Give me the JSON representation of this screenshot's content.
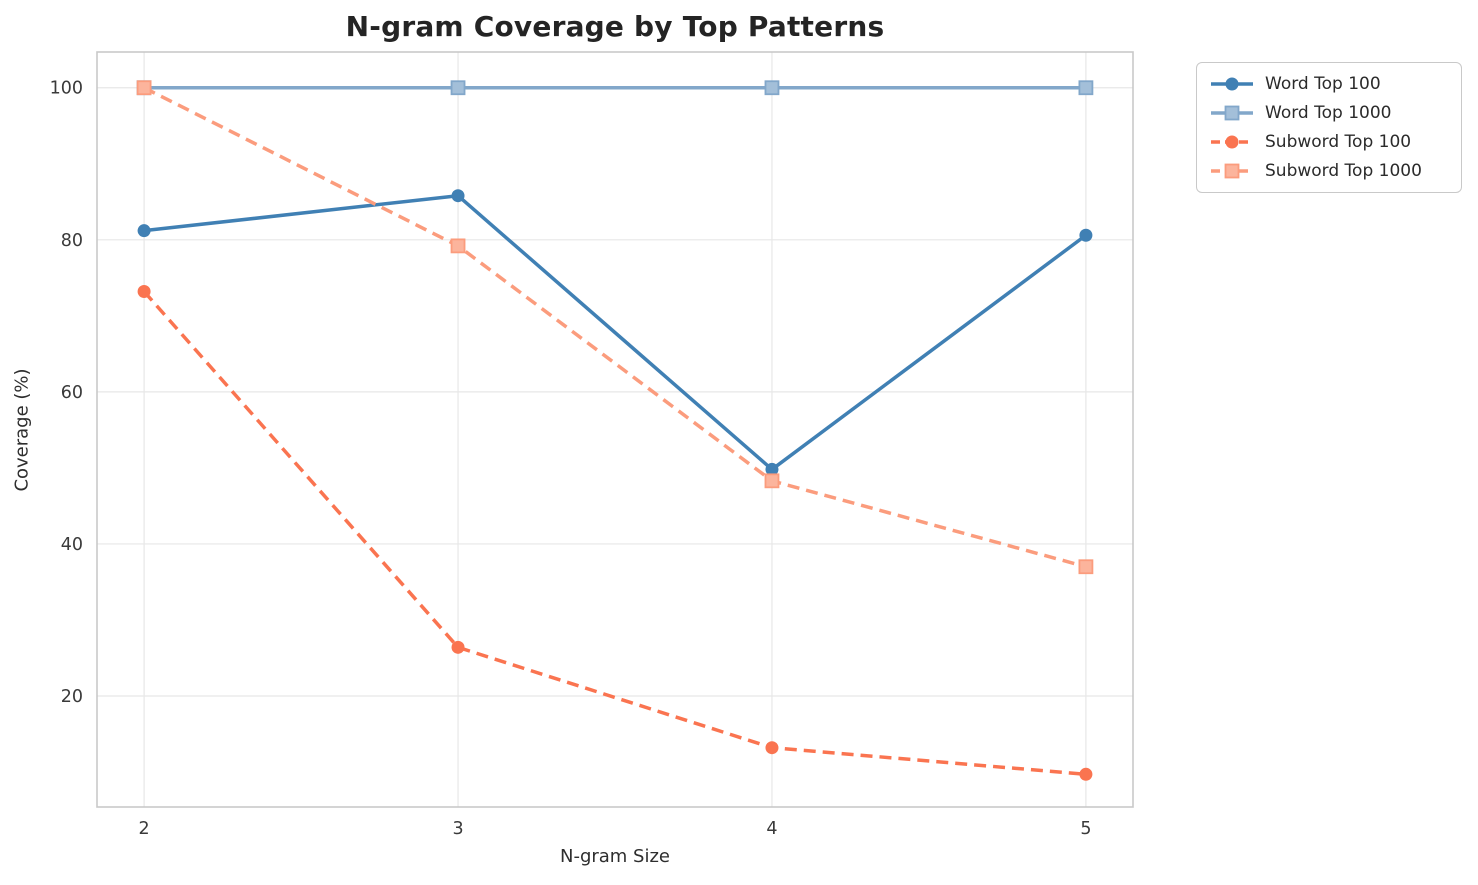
{
  "chart_data": {
    "type": "line",
    "title": "N-gram Coverage by Top Patterns",
    "xlabel": "N-gram Size",
    "ylabel": "Coverage (%)",
    "x": [
      2,
      3,
      4,
      5
    ],
    "x_tick_labels": [
      "2",
      "3",
      "4",
      "5"
    ],
    "y_ticks": [
      20,
      40,
      60,
      80,
      100
    ],
    "y_tick_labels": [
      "20",
      "40",
      "60",
      "80",
      "100"
    ],
    "xlim": [
      1.85,
      5.15
    ],
    "ylim": [
      5.4,
      104.7
    ],
    "grid": true,
    "legend_position": "upper-right-outside",
    "series": [
      {
        "name": "Word Top 100",
        "values": [
          81.2,
          85.8,
          49.8,
          80.6
        ],
        "color": "#4080b4",
        "marker_fill": "#4080b4",
        "line_style": "solid",
        "marker": "circle"
      },
      {
        "name": "Word Top 1000",
        "values": [
          100,
          100,
          100,
          100
        ],
        "color": "#82a7ca",
        "marker_fill": "#a3bfd9",
        "line_style": "solid",
        "marker": "square"
      },
      {
        "name": "Subword Top 100",
        "values": [
          73.2,
          26.4,
          13.2,
          9.7
        ],
        "color": "#fa7450",
        "marker_fill": "#fa7450",
        "line_style": "dashed",
        "marker": "circle"
      },
      {
        "name": "Subword Top 1000",
        "values": [
          100,
          79.2,
          48.3,
          37.0
        ],
        "color": "#fb9c7d",
        "marker_fill": "#fcb49c",
        "line_style": "dashed",
        "marker": "square"
      }
    ],
    "colors": {
      "grid": "#e7e7e7",
      "spine": "#c9c9c9",
      "text": "#2e2e2e",
      "title": "#242424"
    }
  }
}
